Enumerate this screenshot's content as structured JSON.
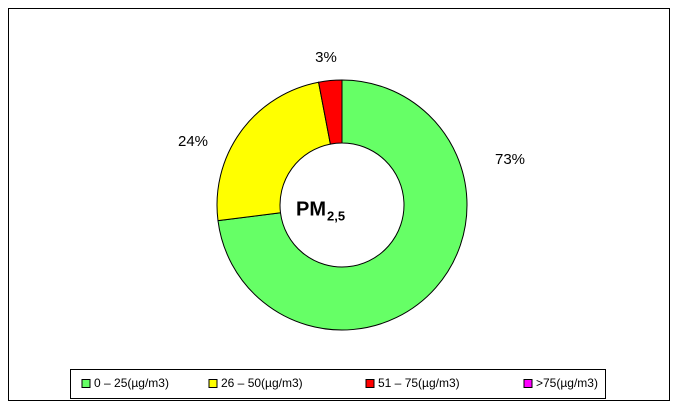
{
  "chart_data": {
    "type": "donut",
    "center_label": "PM",
    "center_label_sub": "2,5",
    "categories": [
      "0 – 25(µg/m3)",
      "26 – 50(µg/m3)",
      "51 – 75(µg/m3)",
      ">75(µg/m3)"
    ],
    "values": [
      73,
      24,
      3,
      0
    ],
    "value_labels": [
      "73%",
      "24%",
      "3%",
      null
    ],
    "colors": [
      "#66ff66",
      "#ffff00",
      "#ff0000",
      "#ff00ff"
    ],
    "legend": "bottom"
  }
}
